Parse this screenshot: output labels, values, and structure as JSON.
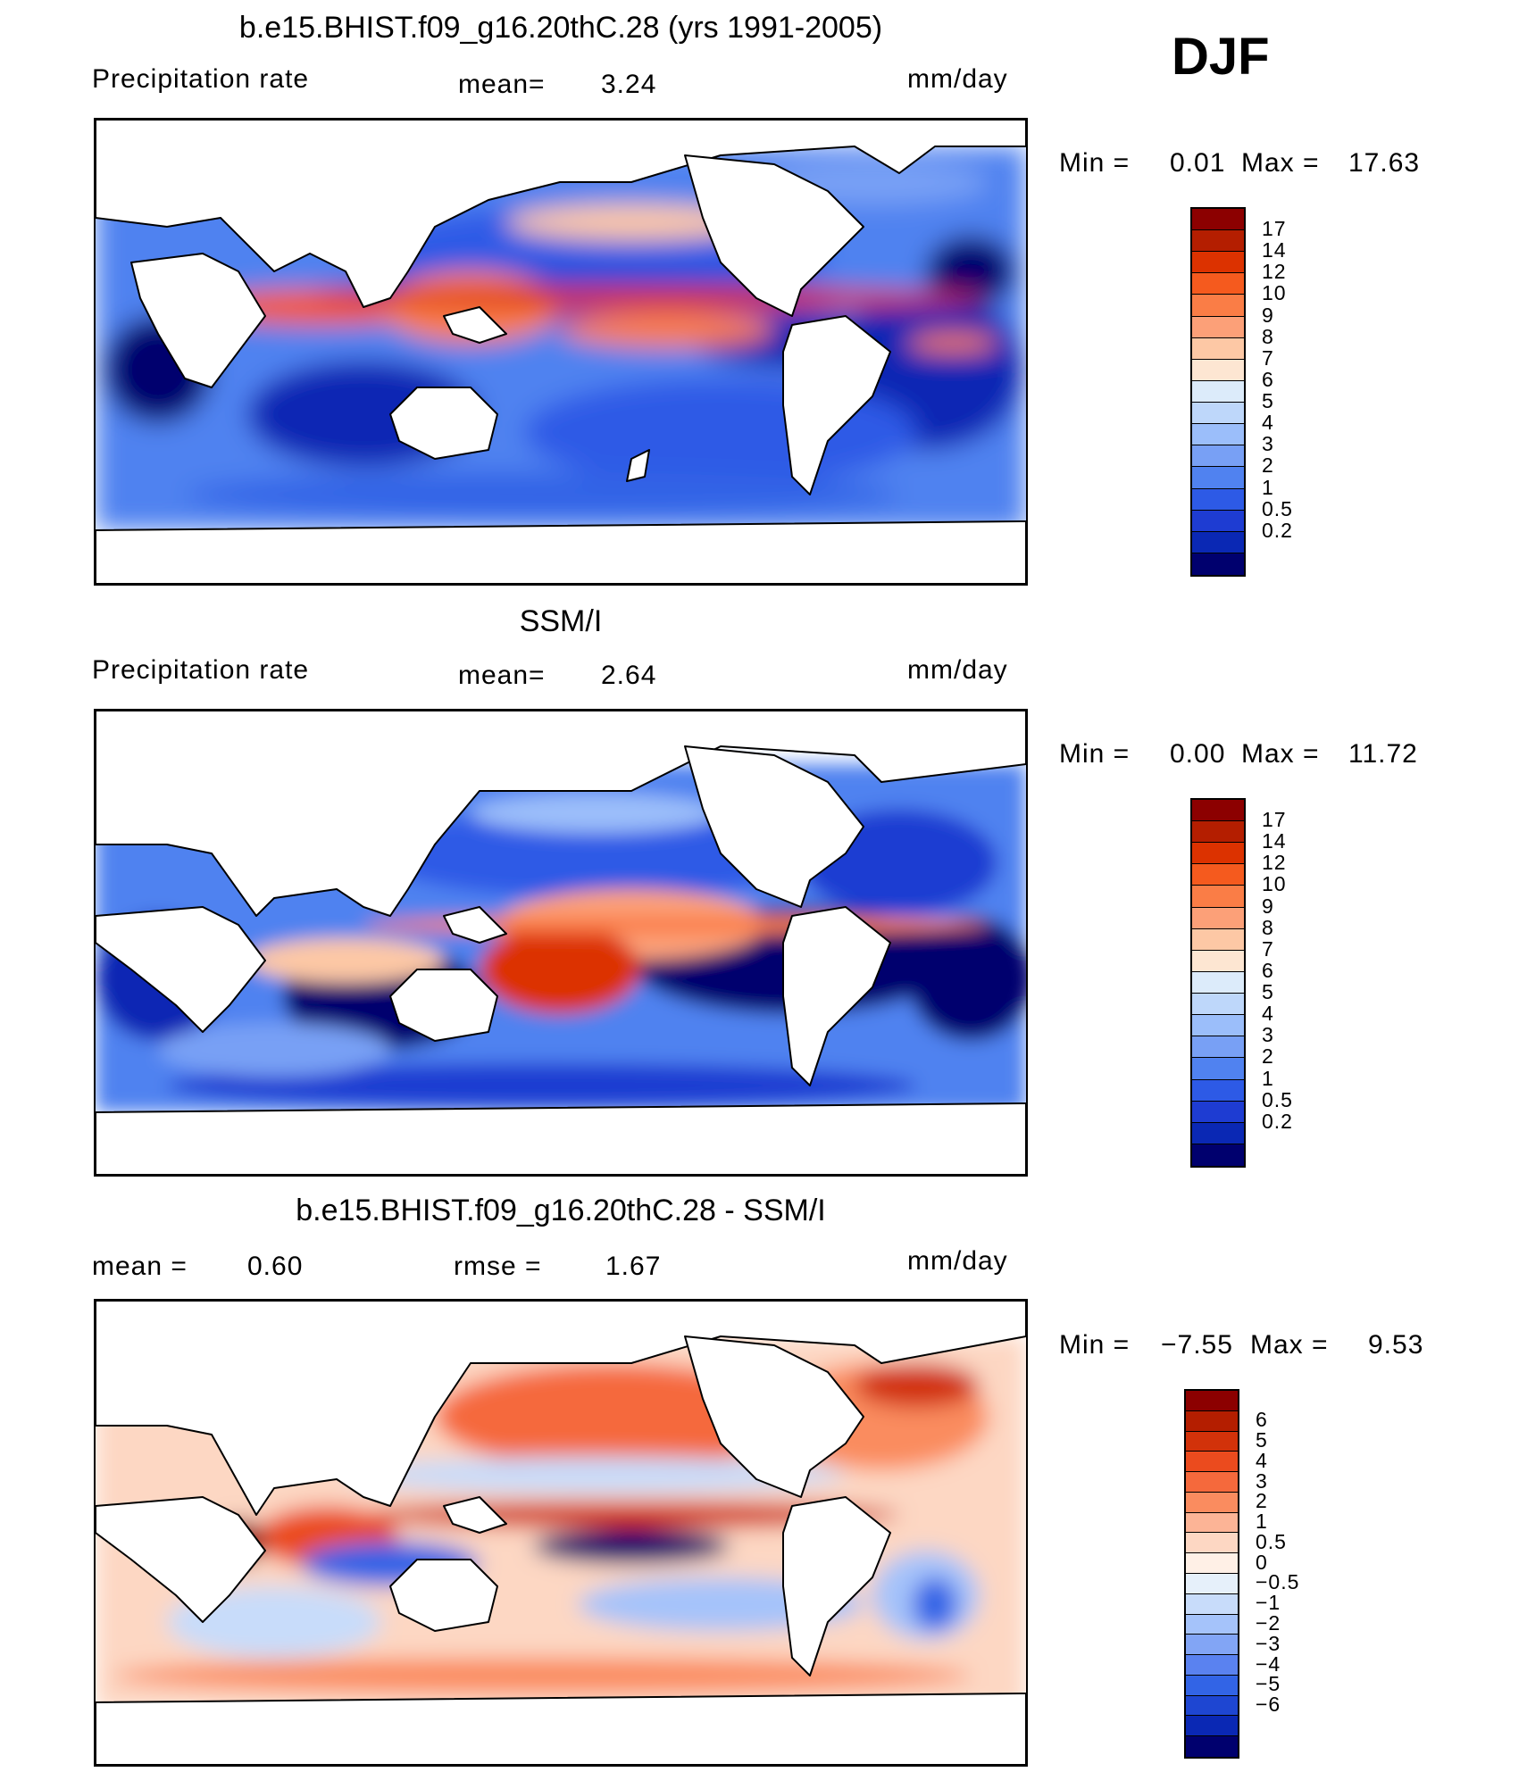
{
  "season": "DJF",
  "colors": {
    "blue_dark": "#00006e",
    "blue_mid": "#1e50e6",
    "blue_light": "#8cb4fa",
    "pale": "#fde6d2",
    "orange": "#fa6e3c",
    "red_dark": "#8c0000",
    "land": "#ffffff"
  },
  "panels": [
    {
      "title": "b.e15.BHIST.f09_g16.20thC.28 (yrs 1991-2005)",
      "left_label": "Precipitation  rate",
      "mid_label": "mean=",
      "mid_value": "3.24",
      "units": "mm/day",
      "min_label": "Min  =",
      "min_value": "0.01",
      "max_label": "Max  =",
      "max_value": "17.63",
      "colorbar_colors": [
        "#8c0000",
        "#b41e00",
        "#dc3200",
        "#f55a1e",
        "#fa7d46",
        "#fca078",
        "#fdc8a5",
        "#fde6d2",
        "#dcebfa",
        "#bed7fa",
        "#9bbefa",
        "#78a0f5",
        "#5082f0",
        "#2d5ae6",
        "#1e3cd2",
        "#0a28b4",
        "#00006e"
      ],
      "colorbar_ticks": [
        "17",
        "14",
        "12",
        "10",
        "9",
        "8",
        "7",
        "6",
        "5",
        "4",
        "3",
        "2",
        "1",
        "0.5",
        "0.2"
      ]
    },
    {
      "title": "SSM/I",
      "left_label": "Precipitation  rate",
      "mid_label": "mean=",
      "mid_value": "2.64",
      "units": "mm/day",
      "min_label": "Min  =",
      "min_value": "0.00",
      "max_label": "Max  =",
      "max_value": "11.72",
      "colorbar_colors": [
        "#8c0000",
        "#b41e00",
        "#dc3200",
        "#f55a1e",
        "#fa7d46",
        "#fca078",
        "#fdc8a5",
        "#fde6d2",
        "#dcebfa",
        "#bed7fa",
        "#9bbefa",
        "#78a0f5",
        "#5082f0",
        "#2d5ae6",
        "#1e3cd2",
        "#0a28b4",
        "#00006e"
      ],
      "colorbar_ticks": [
        "17",
        "14",
        "12",
        "10",
        "9",
        "8",
        "7",
        "6",
        "5",
        "4",
        "3",
        "2",
        "1",
        "0.5",
        "0.2"
      ]
    },
    {
      "title": "b.e15.BHIST.f09_g16.20thC.28 - SSM/I",
      "left_label": "mean  =",
      "left_value": "0.60",
      "mid_label": "rmse  =",
      "mid_value": "1.67",
      "units": "mm/day",
      "min_label": "Min  =",
      "min_value": "−7.55",
      "max_label": "Max  =",
      "max_value": "9.53",
      "colorbar_colors": [
        "#8c0000",
        "#b41e00",
        "#d2320a",
        "#eb4b1e",
        "#f5693c",
        "#fa8c5f",
        "#fcb496",
        "#fdd7c3",
        "#fff0e6",
        "#e6f0fa",
        "#c8dcfa",
        "#a5c3fa",
        "#82a5f5",
        "#5a82f0",
        "#3264e6",
        "#1e46d2",
        "#0a28b4",
        "#00006e"
      ],
      "colorbar_ticks": [
        "6",
        "5",
        "4",
        "3",
        "2",
        "1",
        "0.5",
        "0",
        "−0.5",
        "−1",
        "−2",
        "−3",
        "−4",
        "−5",
        "−6"
      ]
    }
  ]
}
